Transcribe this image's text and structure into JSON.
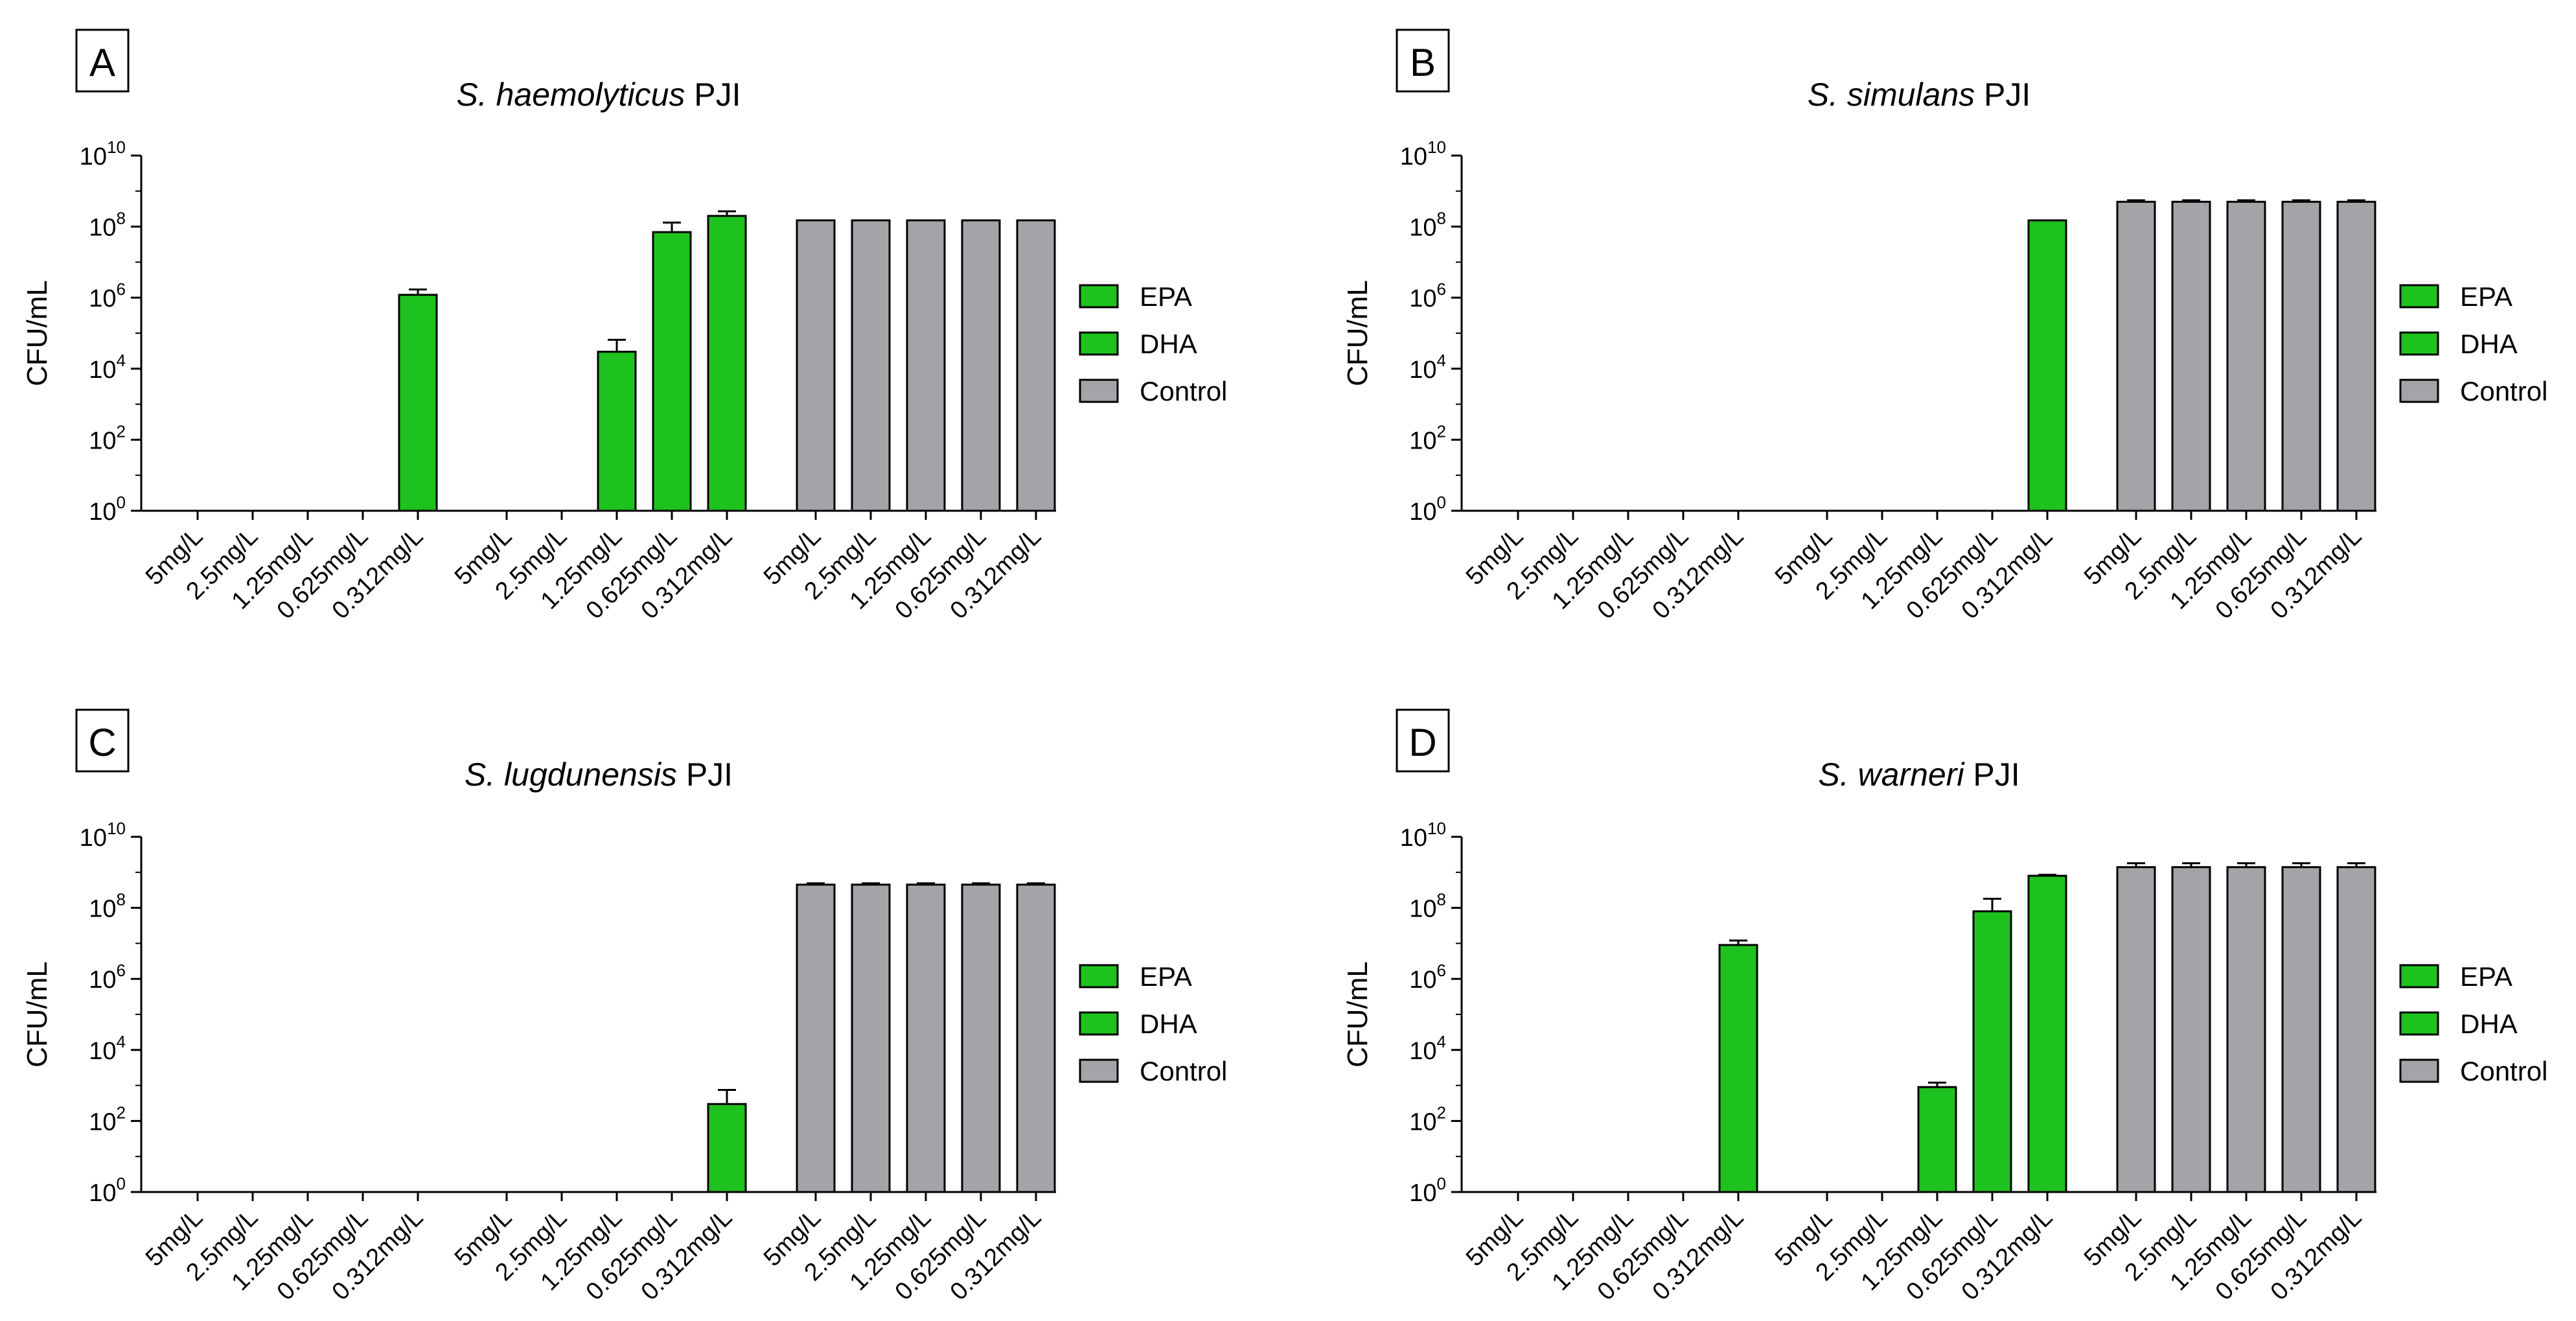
{
  "chart_data": [
    {
      "panel": "A",
      "type": "bar",
      "title_italic": "S. haemolyticus",
      "title_suffix": " PJI",
      "ylabel": "CFU/mL",
      "xlabel": "",
      "yscale": "log10",
      "ylim": [
        1,
        10000000000
      ],
      "yticks": [
        {
          "base": "10",
          "exp": "0"
        },
        {
          "base": "10",
          "exp": "2"
        },
        {
          "base": "10",
          "exp": "4"
        },
        {
          "base": "10",
          "exp": "6"
        },
        {
          "base": "10",
          "exp": "8"
        },
        {
          "base": "10",
          "exp": "10"
        }
      ],
      "legend_position": "right",
      "series": [
        {
          "name": "EPA",
          "color": "#1ec21e",
          "categories": [
            "5mg/L",
            "2.5mg/L",
            "1.25mg/L",
            "0.625mg/L",
            "0.312mg/L"
          ],
          "values": [
            1,
            1,
            1,
            1,
            1200000
          ],
          "errors": [
            null,
            null,
            null,
            null,
            500000
          ]
        },
        {
          "name": "DHA",
          "color": "#1ec21e",
          "categories": [
            "5mg/L",
            "2.5mg/L",
            "1.25mg/L",
            "0.625mg/L",
            "0.312mg/L"
          ],
          "values": [
            1,
            1,
            30000,
            70000000,
            200000000
          ],
          "errors": [
            null,
            null,
            35000,
            60000000,
            70000000
          ]
        },
        {
          "name": "Control",
          "color": "#a3a3a8",
          "categories": [
            "5mg/L",
            "2.5mg/L",
            "1.25mg/L",
            "0.625mg/L",
            "0.312mg/L"
          ],
          "values": [
            150000000,
            150000000,
            150000000,
            150000000,
            150000000
          ],
          "errors": [
            null,
            null,
            null,
            null,
            null
          ]
        }
      ]
    },
    {
      "panel": "B",
      "type": "bar",
      "title_italic": "S. simulans",
      "title_suffix": " PJI",
      "ylabel": "CFU/mL",
      "xlabel": "",
      "yscale": "log10",
      "ylim": [
        1,
        10000000000
      ],
      "yticks": [
        {
          "base": "10",
          "exp": "0"
        },
        {
          "base": "10",
          "exp": "2"
        },
        {
          "base": "10",
          "exp": "4"
        },
        {
          "base": "10",
          "exp": "6"
        },
        {
          "base": "10",
          "exp": "8"
        },
        {
          "base": "10",
          "exp": "10"
        }
      ],
      "legend_position": "right",
      "series": [
        {
          "name": "EPA",
          "color": "#1ec21e",
          "categories": [
            "5mg/L",
            "2.5mg/L",
            "1.25mg/L",
            "0.625mg/L",
            "0.312mg/L"
          ],
          "values": [
            1,
            1,
            1,
            1,
            1
          ],
          "errors": [
            null,
            null,
            null,
            null,
            null
          ]
        },
        {
          "name": "DHA",
          "color": "#1ec21e",
          "categories": [
            "5mg/L",
            "2.5mg/L",
            "1.25mg/L",
            "0.625mg/L",
            "0.312mg/L"
          ],
          "values": [
            1,
            1,
            1,
            1,
            150000000
          ],
          "errors": [
            null,
            null,
            null,
            null,
            null
          ]
        },
        {
          "name": "Control",
          "color": "#a3a3a8",
          "categories": [
            "5mg/L",
            "2.5mg/L",
            "1.25mg/L",
            "0.625mg/L",
            "0.312mg/L"
          ],
          "values": [
            500000000,
            500000000,
            500000000,
            500000000,
            500000000
          ],
          "errors": [
            50000000,
            50000000,
            50000000,
            50000000,
            50000000
          ]
        }
      ]
    },
    {
      "panel": "C",
      "type": "bar",
      "title_italic": "S. lugdunensis",
      "title_suffix": " PJI",
      "ylabel": "CFU/mL",
      "xlabel": "",
      "yscale": "log10",
      "ylim": [
        1,
        10000000000
      ],
      "yticks": [
        {
          "base": "10",
          "exp": "0"
        },
        {
          "base": "10",
          "exp": "2"
        },
        {
          "base": "10",
          "exp": "4"
        },
        {
          "base": "10",
          "exp": "6"
        },
        {
          "base": "10",
          "exp": "8"
        },
        {
          "base": "10",
          "exp": "10"
        }
      ],
      "legend_position": "right",
      "series": [
        {
          "name": "EPA",
          "color": "#1ec21e",
          "categories": [
            "5mg/L",
            "2.5mg/L",
            "1.25mg/L",
            "0.625mg/L",
            "0.312mg/L"
          ],
          "values": [
            1,
            1,
            1,
            1,
            1
          ],
          "errors": [
            null,
            null,
            null,
            null,
            null
          ]
        },
        {
          "name": "DHA",
          "color": "#1ec21e",
          "categories": [
            "5mg/L",
            "2.5mg/L",
            "1.25mg/L",
            "0.625mg/L",
            "0.312mg/L"
          ],
          "values": [
            1,
            1,
            1,
            1,
            300
          ],
          "errors": [
            null,
            null,
            null,
            null,
            450
          ]
        },
        {
          "name": "Control",
          "color": "#a3a3a8",
          "categories": [
            "5mg/L",
            "2.5mg/L",
            "1.25mg/L",
            "0.625mg/L",
            "0.312mg/L"
          ],
          "values": [
            450000000,
            450000000,
            450000000,
            450000000,
            450000000
          ],
          "errors": [
            40000000,
            40000000,
            40000000,
            40000000,
            40000000
          ]
        }
      ]
    },
    {
      "panel": "D",
      "type": "bar",
      "title_italic": "S. warneri",
      "title_suffix": " PJI",
      "ylabel": "CFU/mL",
      "xlabel": "",
      "yscale": "log10",
      "ylim": [
        1,
        10000000000
      ],
      "yticks": [
        {
          "base": "10",
          "exp": "0"
        },
        {
          "base": "10",
          "exp": "2"
        },
        {
          "base": "10",
          "exp": "4"
        },
        {
          "base": "10",
          "exp": "6"
        },
        {
          "base": "10",
          "exp": "8"
        },
        {
          "base": "10",
          "exp": "10"
        }
      ],
      "legend_position": "right",
      "series": [
        {
          "name": "EPA",
          "color": "#1ec21e",
          "categories": [
            "5mg/L",
            "2.5mg/L",
            "1.25mg/L",
            "0.625mg/L",
            "0.312mg/L"
          ],
          "values": [
            1,
            1,
            1,
            1,
            9000000
          ],
          "errors": [
            null,
            null,
            null,
            null,
            3000000
          ]
        },
        {
          "name": "DHA",
          "color": "#1ec21e",
          "categories": [
            "5mg/L",
            "2.5mg/L",
            "1.25mg/L",
            "0.625mg/L",
            "0.312mg/L"
          ],
          "values": [
            1,
            1,
            900,
            80000000,
            800000000
          ],
          "errors": [
            null,
            null,
            300,
            100000000,
            50000000
          ]
        },
        {
          "name": "Control",
          "color": "#a3a3a8",
          "categories": [
            "5mg/L",
            "2.5mg/L",
            "1.25mg/L",
            "0.625mg/L",
            "0.312mg/L"
          ],
          "values": [
            1400000000,
            1400000000,
            1400000000,
            1400000000,
            1400000000
          ],
          "errors": [
            400000000,
            400000000,
            400000000,
            400000000,
            400000000
          ]
        }
      ]
    }
  ]
}
